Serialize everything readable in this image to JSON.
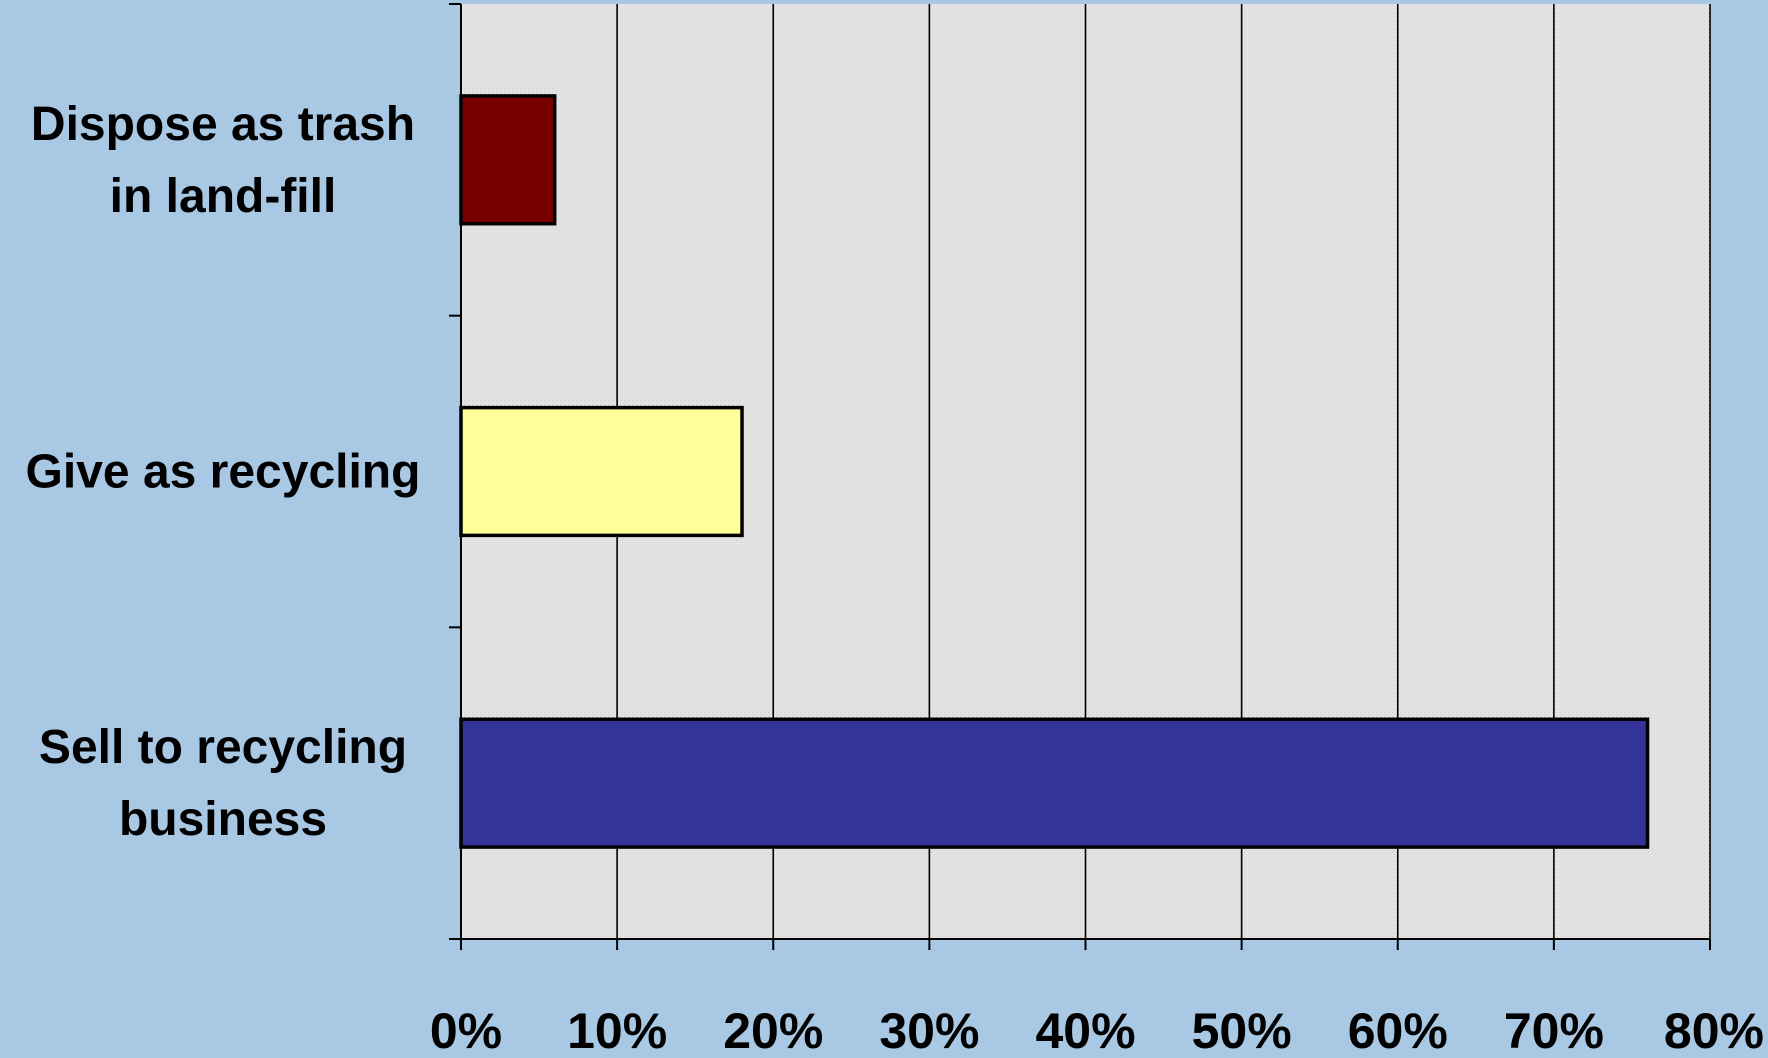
{
  "chart_data": {
    "type": "bar",
    "orientation": "horizontal",
    "categories": [
      [
        "Dispose as trash",
        "in land-fill"
      ],
      [
        "Give as recycling"
      ],
      [
        "Sell to recycling",
        "business"
      ]
    ],
    "values": [
      6,
      18,
      76
    ],
    "colors": [
      "#7a0000",
      "#ffff99",
      "#333399"
    ],
    "xlim": [
      0,
      80
    ],
    "xticks": [
      "0%",
      "10%",
      "20%",
      "30%",
      "40%",
      "50%",
      "60%",
      "70%",
      "80%"
    ],
    "title": "",
    "xlabel": "",
    "ylabel": "",
    "grid": "vertical",
    "legend": "none",
    "background_color": "#a8c8e4",
    "plot_background": "#e6e6e6"
  }
}
